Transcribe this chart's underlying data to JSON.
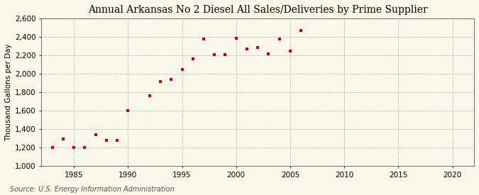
{
  "title": "Annual Arkansas No 2 Diesel All Sales/Deliveries by Prime Supplier",
  "ylabel": "Thousand Gallons per Day",
  "source": "Source: U.S. Energy Information Administration",
  "background_color": "#faf6ea",
  "plot_bg_color": "#faf6ea",
  "marker_color": "#cc0000",
  "years": [
    1983,
    1984,
    1985,
    1986,
    1987,
    1988,
    1989,
    1990,
    1992,
    1993,
    1994,
    1995,
    1996,
    1997,
    1998,
    1999,
    2000,
    2001,
    2002,
    2003,
    2004,
    2005,
    2006
  ],
  "values": [
    1200,
    1290,
    1200,
    1200,
    1340,
    1280,
    1280,
    1600,
    1760,
    1920,
    1940,
    2050,
    2160,
    2380,
    2210,
    2210,
    2390,
    2270,
    2290,
    2220,
    2380,
    2250,
    2470
  ],
  "xlim": [
    1982,
    2022
  ],
  "ylim": [
    1000,
    2600
  ],
  "xticks": [
    1985,
    1990,
    1995,
    2000,
    2005,
    2010,
    2015,
    2020
  ],
  "yticks": [
    1000,
    1200,
    1400,
    1600,
    1800,
    2000,
    2200,
    2400,
    2600
  ],
  "ytick_labels": [
    "1,000",
    "1,200",
    "1,400",
    "1,600",
    "1,800",
    "2,000",
    "2,200",
    "2,400",
    "2,600"
  ],
  "grid_color": "#bbbbbb",
  "grid_style": "--",
  "title_fontsize": 10,
  "label_fontsize": 7.5,
  "tick_fontsize": 7.5,
  "source_fontsize": 7,
  "marker_size": 3.5
}
